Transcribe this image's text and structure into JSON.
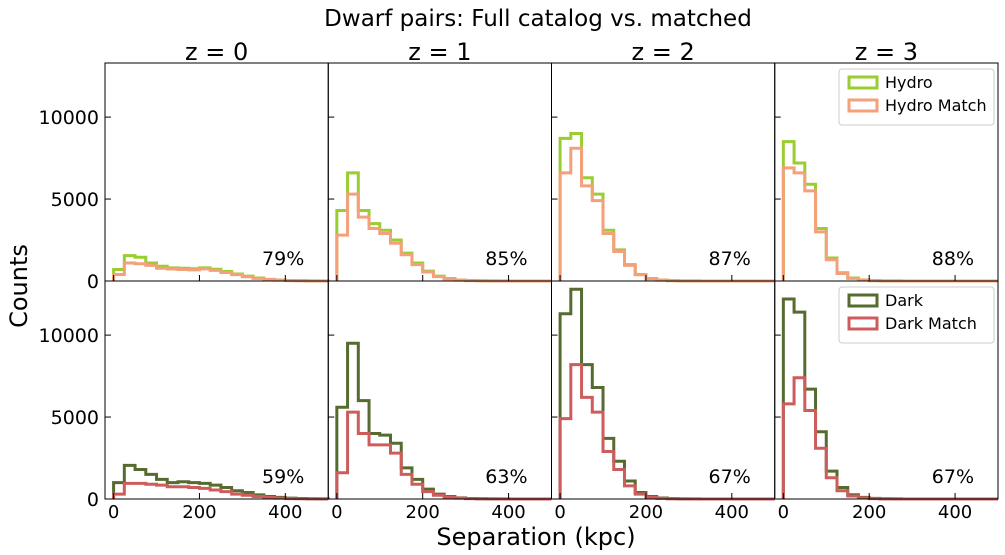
{
  "chart_data": {
    "type": "histogram-grid",
    "title": "Dwarf pairs: Full catalog vs. matched",
    "xlabel": "Separation (kpc)",
    "ylabel": "Counts",
    "xlim": [
      -20,
      500
    ],
    "ylim": [
      0,
      13300
    ],
    "xticks": [
      0,
      200,
      400
    ],
    "xtick_labels": [
      "0",
      "200",
      "400"
    ],
    "yticks": [
      0,
      5000,
      10000
    ],
    "ytick_labels": [
      "0",
      "5000",
      "10000"
    ],
    "bin_edges": [
      0,
      25,
      50,
      75,
      100,
      125,
      150,
      175,
      200,
      225,
      250,
      275,
      300,
      325,
      350,
      375,
      400,
      425,
      450,
      475,
      500
    ],
    "column_titles": [
      "z = 0",
      "z = 1",
      "z = 2",
      "z = 3"
    ],
    "rows": [
      {
        "legend": [
          {
            "name": "Hydro",
            "color": "#9acd32"
          },
          {
            "name": "Hydro Match",
            "color": "#f4a07a"
          }
        ],
        "legend_panel": 3,
        "legend_position": "top-right",
        "panels": [
          {
            "percent_label": "79%",
            "series": [
              {
                "name": "Hydro",
                "values": [
                  700,
                  1550,
                  1450,
                  1100,
                  900,
                  800,
                  780,
                  750,
                  800,
                  720,
                  580,
                  430,
                  300,
                  180,
                  100,
                  60,
                  30,
                  20,
                  10,
                  5
                ]
              },
              {
                "name": "Hydro Match",
                "values": [
                  400,
                  1100,
                  1050,
                  950,
                  780,
                  730,
                  700,
                  680,
                  740,
                  650,
                  520,
                  390,
                  260,
                  160,
                  90,
                  50,
                  25,
                  15,
                  8,
                  3
                ]
              }
            ]
          },
          {
            "percent_label": "85%",
            "series": [
              {
                "name": "Hydro",
                "values": [
                  4300,
                  6600,
                  4300,
                  3500,
                  3100,
                  2500,
                  1700,
                  1100,
                  600,
                  300,
                  150,
                  60,
                  30,
                  15,
                  8,
                  4,
                  2,
                  1,
                  0,
                  0
                ]
              },
              {
                "name": "Hydro Match",
                "values": [
                  2800,
                  5300,
                  3900,
                  3200,
                  2900,
                  2300,
                  1600,
                  1000,
                  550,
                  270,
                  130,
                  50,
                  25,
                  12,
                  6,
                  3,
                  1,
                  0,
                  0,
                  0
                ]
              }
            ]
          },
          {
            "percent_label": "87%",
            "series": [
              {
                "name": "Hydro",
                "values": [
                  8700,
                  9000,
                  6300,
                  5300,
                  3100,
                  1900,
                  1000,
                  400,
                  150,
                  60,
                  25,
                  10,
                  5,
                  2,
                  1,
                  0,
                  0,
                  0,
                  0,
                  0
                ]
              },
              {
                "name": "Hydro Match",
                "values": [
                  6600,
                  8100,
                  5800,
                  4900,
                  2900,
                  1800,
                  950,
                  380,
                  140,
                  55,
                  22,
                  8,
                  4,
                  2,
                  1,
                  0,
                  0,
                  0,
                  0,
                  0
                ]
              }
            ]
          },
          {
            "percent_label": "88%",
            "series": [
              {
                "name": "Hydro",
                "values": [
                  8500,
                  7200,
                  5900,
                  3200,
                  1400,
                  500,
                  180,
                  70,
                  25,
                  10,
                  5,
                  2,
                  1,
                  0,
                  0,
                  0,
                  0,
                  0,
                  0,
                  0
                ]
              },
              {
                "name": "Hydro Match",
                "values": [
                  6900,
                  6600,
                  5500,
                  3000,
                  1300,
                  460,
                  160,
                  60,
                  22,
                  9,
                  4,
                  2,
                  1,
                  0,
                  0,
                  0,
                  0,
                  0,
                  0,
                  0
                ]
              }
            ]
          }
        ]
      },
      {
        "legend": [
          {
            "name": "Dark",
            "color": "#556b2f"
          },
          {
            "name": "Dark Match",
            "color": "#cd5c5c"
          }
        ],
        "legend_panel": 3,
        "legend_position": "top-right",
        "panels": [
          {
            "percent_label": "59%",
            "series": [
              {
                "name": "Dark",
                "values": [
                  1000,
                  2050,
                  1800,
                  1500,
                  1200,
                  1000,
                  1050,
                  1000,
                  950,
                  850,
                  700,
                  500,
                  400,
                  250,
                  150,
                  100,
                  50,
                  30,
                  15,
                  8
                ]
              },
              {
                "name": "Dark Match",
                "values": [
                  300,
                  950,
                  950,
                  900,
                  850,
                  750,
                  750,
                  700,
                  650,
                  550,
                  450,
                  300,
                  230,
                  150,
                  90,
                  50,
                  25,
                  15,
                  8,
                  4
                ]
              }
            ]
          },
          {
            "percent_label": "63%",
            "series": [
              {
                "name": "Dark",
                "values": [
                  5600,
                  9500,
                  6000,
                  4000,
                  3900,
                  3400,
                  1900,
                  1200,
                  600,
                  300,
                  150,
                  70,
                  30,
                  15,
                  8,
                  4,
                  2,
                  1,
                  0,
                  0
                ]
              },
              {
                "name": "Dark Match",
                "values": [
                  1600,
                  5300,
                  4000,
                  3300,
                  3300,
                  2800,
                  1500,
                  900,
                  450,
                  230,
                  110,
                  50,
                  25,
                  12,
                  6,
                  3,
                  1,
                  0,
                  0,
                  0
                ]
              }
            ]
          },
          {
            "percent_label": "67%",
            "series": [
              {
                "name": "Dark",
                "values": [
                  11300,
                  12800,
                  8200,
                  6800,
                  3700,
                  2300,
                  1100,
                  400,
                  150,
                  60,
                  25,
                  10,
                  5,
                  2,
                  1,
                  0,
                  0,
                  0,
                  0,
                  0
                ]
              },
              {
                "name": "Dark Match",
                "values": [
                  4900,
                  8200,
                  6200,
                  5300,
                  2900,
                  1800,
                  800,
                  300,
                  100,
                  40,
                  15,
                  6,
                  3,
                  1,
                  0,
                  0,
                  0,
                  0,
                  0,
                  0
                ]
              }
            ]
          },
          {
            "percent_label": "67%",
            "series": [
              {
                "name": "Dark",
                "values": [
                  12200,
                  11400,
                  6700,
                  4100,
                  1700,
                  700,
                  260,
                  100,
                  35,
                  15,
                  6,
                  3,
                  1,
                  0,
                  0,
                  0,
                  0,
                  0,
                  0,
                  0
                ]
              },
              {
                "name": "Dark Match",
                "values": [
                  5800,
                  7400,
                  5400,
                  3100,
                  1300,
                  500,
                  180,
                  70,
                  25,
                  10,
                  4,
                  2,
                  1,
                  0,
                  0,
                  0,
                  0,
                  0,
                  0,
                  0
                ]
              }
            ]
          }
        ]
      }
    ]
  }
}
